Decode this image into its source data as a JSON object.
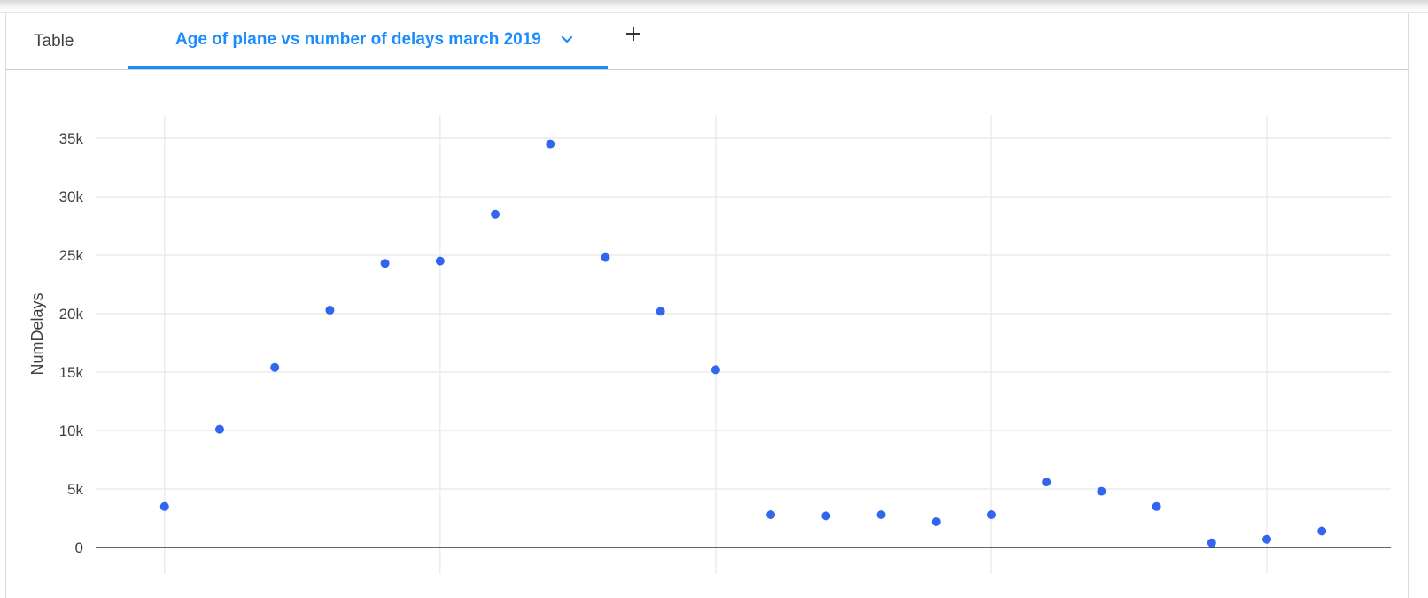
{
  "tabs": {
    "table_label": "Table",
    "chart_label": "Age of plane vs number of delays march 2019",
    "add_icon": "plus-icon",
    "dropdown_icon": "chevron-down-icon"
  },
  "colors": {
    "accent": "#1a8cff",
    "point": "#3366ee",
    "grid": "#e8e8e8",
    "axis": "#333333"
  },
  "chart_data": {
    "type": "scatter",
    "title": "",
    "xlabel": "",
    "ylabel": "NumDelays",
    "ylim": [
      0,
      37500
    ],
    "yticks": [
      0,
      5000,
      10000,
      15000,
      20000,
      25000,
      30000,
      35000
    ],
    "ytick_labels": [
      "0",
      "5k",
      "10k",
      "15k",
      "20k",
      "25k",
      "30k",
      "35k"
    ],
    "xlim": [
      -1.25,
      22.25
    ],
    "xgrid": [
      0,
      5,
      10,
      15,
      20
    ],
    "grid": true,
    "x": [
      0,
      1,
      2,
      3,
      4,
      5,
      6,
      7,
      8,
      9,
      10,
      11,
      12,
      13,
      14,
      15,
      16,
      17,
      18,
      19,
      20,
      21
    ],
    "values": [
      3500,
      10100,
      15400,
      20300,
      24300,
      24500,
      28500,
      34500,
      24800,
      20200,
      15200,
      2800,
      2700,
      2800,
      2200,
      2800,
      5600,
      4800,
      3500,
      400,
      700,
      1400
    ]
  }
}
